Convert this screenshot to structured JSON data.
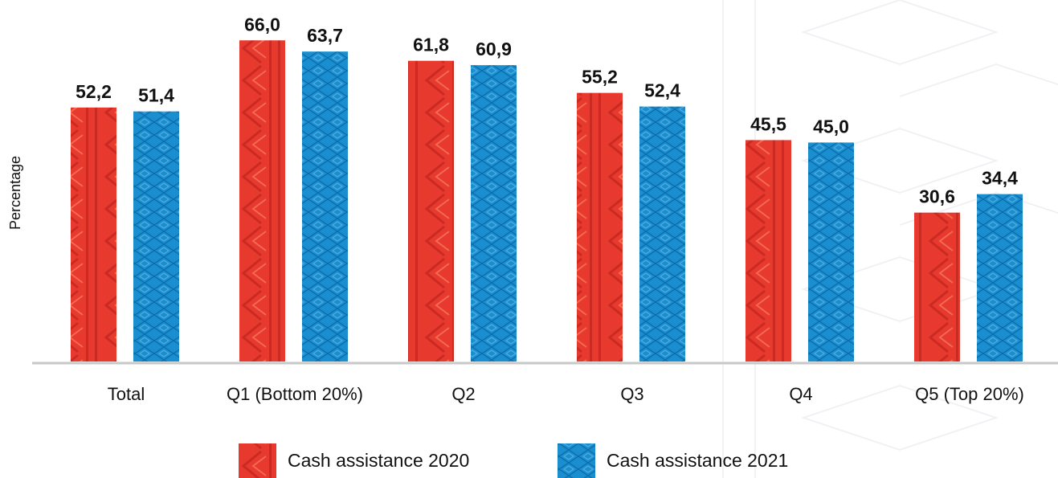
{
  "chart_data": {
    "type": "bar",
    "y_label": "Percentage",
    "categories": [
      "Total",
      "Q1 (Bottom 20%)",
      "Q2",
      "Q3",
      "Q4",
      "Q5 (Top 20%)"
    ],
    "series": [
      {
        "name": "Cash assistance 2020",
        "color": "#e8392e",
        "values": [
          52.2,
          66.0,
          61.8,
          55.2,
          45.5,
          30.6
        ],
        "value_labels": [
          "52,2",
          "66,0",
          "61,8",
          "55,2",
          "45,5",
          "30,6"
        ]
      },
      {
        "name": "Cash assistance 2021",
        "color": "#1a8fd0",
        "values": [
          51.4,
          63.7,
          60.9,
          52.4,
          45.0,
          34.4
        ],
        "value_labels": [
          "51,4",
          "63,7",
          "60,9",
          "52,4",
          "45,0",
          "34,4"
        ]
      }
    ],
    "ylim": [
      0,
      70
    ]
  }
}
